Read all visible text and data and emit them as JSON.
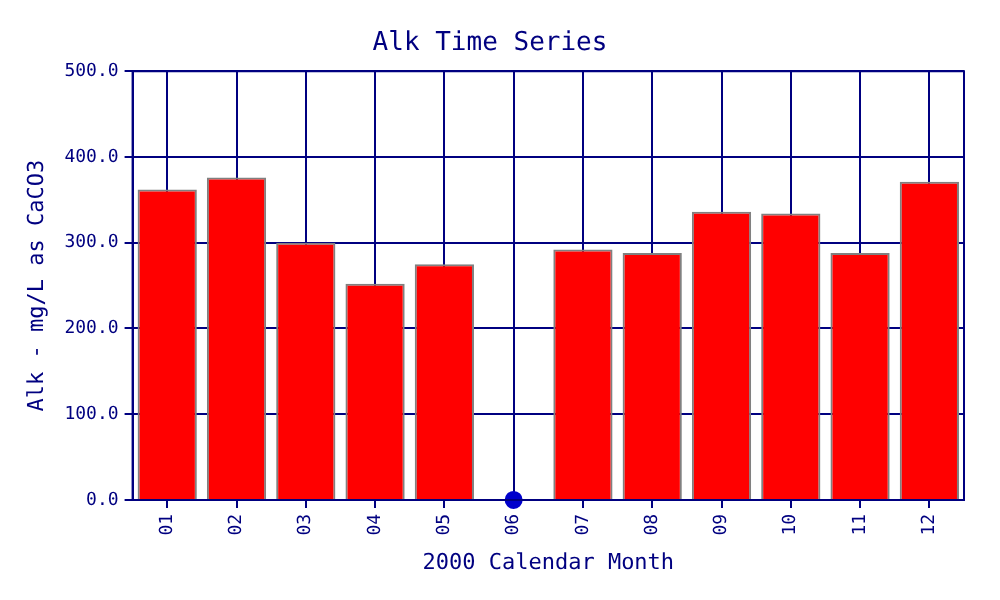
{
  "chart_data": {
    "type": "bar",
    "title": "Alk Time Series",
    "xlabel": "2000 Calendar Month",
    "ylabel": "Alk - mg/L as CaCO3",
    "categories": [
      "01",
      "02",
      "03",
      "04",
      "05",
      "06",
      "07",
      "08",
      "09",
      "10",
      "11",
      "12"
    ],
    "series": [
      {
        "color": "#ff0000",
        "values": [
          362,
          376,
          300,
          252,
          275,
          null,
          292,
          288,
          336,
          334,
          288,
          371
        ]
      },
      {
        "type": "scatter",
        "color": "#0000cc",
        "x": [
          "06"
        ],
        "values": [
          0
        ],
        "marker": "circle"
      }
    ],
    "ylim": [
      0,
      500
    ],
    "yticks": [
      {
        "value": 0,
        "label": "0.0"
      },
      {
        "value": 100,
        "label": "100.0"
      },
      {
        "value": 200,
        "label": "200.0"
      },
      {
        "value": 300,
        "label": "300.0"
      },
      {
        "value": 400,
        "label": "400.0"
      },
      {
        "value": 500,
        "label": "500.0"
      }
    ],
    "grid": true,
    "legend": false
  }
}
